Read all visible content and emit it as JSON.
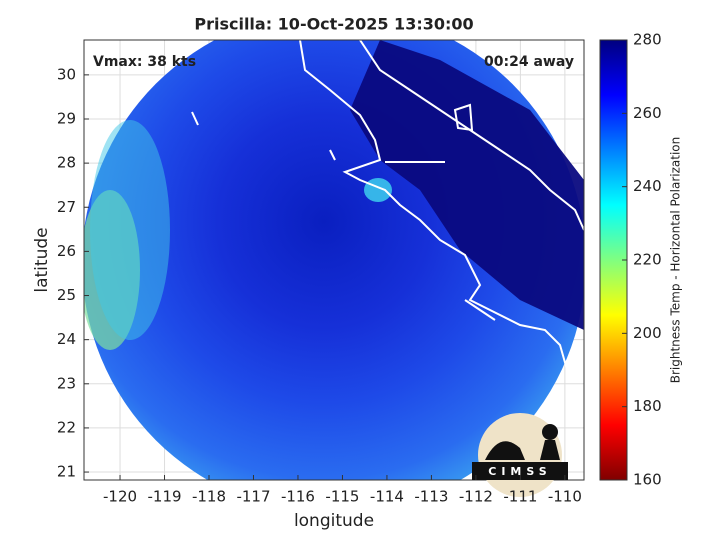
{
  "chart_data": {
    "type": "map",
    "title": "Priscilla: 10-Oct-2025 13:30:00",
    "xlabel": "longitude",
    "ylabel": "latitude",
    "annotations": [
      "Vmax: 38 kts",
      "00:24 away"
    ],
    "xlim": [
      -120.81,
      -109.57
    ],
    "xticks": [
      -120,
      -119,
      -118,
      -117,
      -116,
      -115,
      -114,
      -113,
      -112,
      -111,
      -110
    ],
    "ylim": [
      20.82,
      30.79
    ],
    "yticks": [
      21,
      22,
      23,
      24,
      25,
      26,
      27,
      28,
      29,
      30
    ],
    "grid": true,
    "colorbar": {
      "label": "Brightness Temp - Horizontal Polarization",
      "lim": [
        160,
        280
      ],
      "ticks": [
        160,
        180,
        200,
        220,
        240,
        260,
        280
      ],
      "colors": [
        "#800000",
        "#ff0000",
        "#ff8000",
        "#ffff00",
        "#80ff80",
        "#00ffff",
        "#0080ff",
        "#0000ff",
        "#000080"
      ]
    },
    "logo": "CIMSS"
  }
}
